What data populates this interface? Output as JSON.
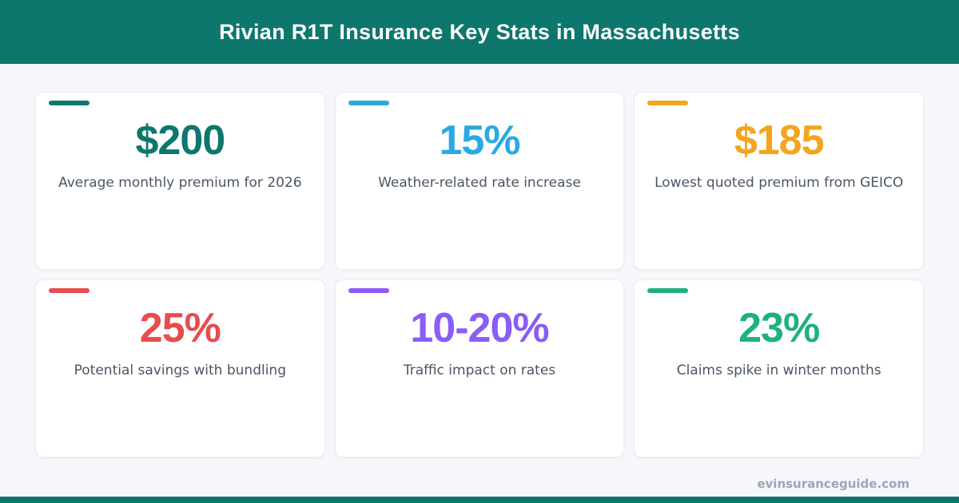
{
  "header": {
    "title": "Rivian R1T Insurance Key Stats in Massachusetts",
    "bg_color": "#0E776D"
  },
  "cards": [
    {
      "value": "$200",
      "label": "Average monthly premium for 2026",
      "color": "#0E776D"
    },
    {
      "value": "15%",
      "label": "Weather-related rate increase",
      "color": "#29A9E1"
    },
    {
      "value": "$185",
      "label": "Lowest quoted premium from GEICO",
      "color": "#F2A51D"
    },
    {
      "value": "25%",
      "label": "Potential savings with bundling",
      "color": "#E84C4C"
    },
    {
      "value": "10-20%",
      "label": "Traffic impact on rates",
      "color": "#8B5CF6"
    },
    {
      "value": "23%",
      "label": "Claims spike in winter months",
      "color": "#1FB082"
    }
  ],
  "footer": {
    "website": "evinsuranceguide.com",
    "bar_color": "#0E776D"
  },
  "chart_data": {
    "type": "table",
    "title": "Rivian R1T Insurance Key Stats in Massachusetts",
    "columns": [
      "stat",
      "description"
    ],
    "rows": [
      [
        "$200",
        "Average monthly premium for 2026"
      ],
      [
        "15%",
        "Weather-related rate increase"
      ],
      [
        "$185",
        "Lowest quoted premium from GEICO"
      ],
      [
        "25%",
        "Potential savings with bundling"
      ],
      [
        "10-20%",
        "Traffic impact on rates"
      ],
      [
        "23%",
        "Claims spike in winter months"
      ]
    ]
  }
}
